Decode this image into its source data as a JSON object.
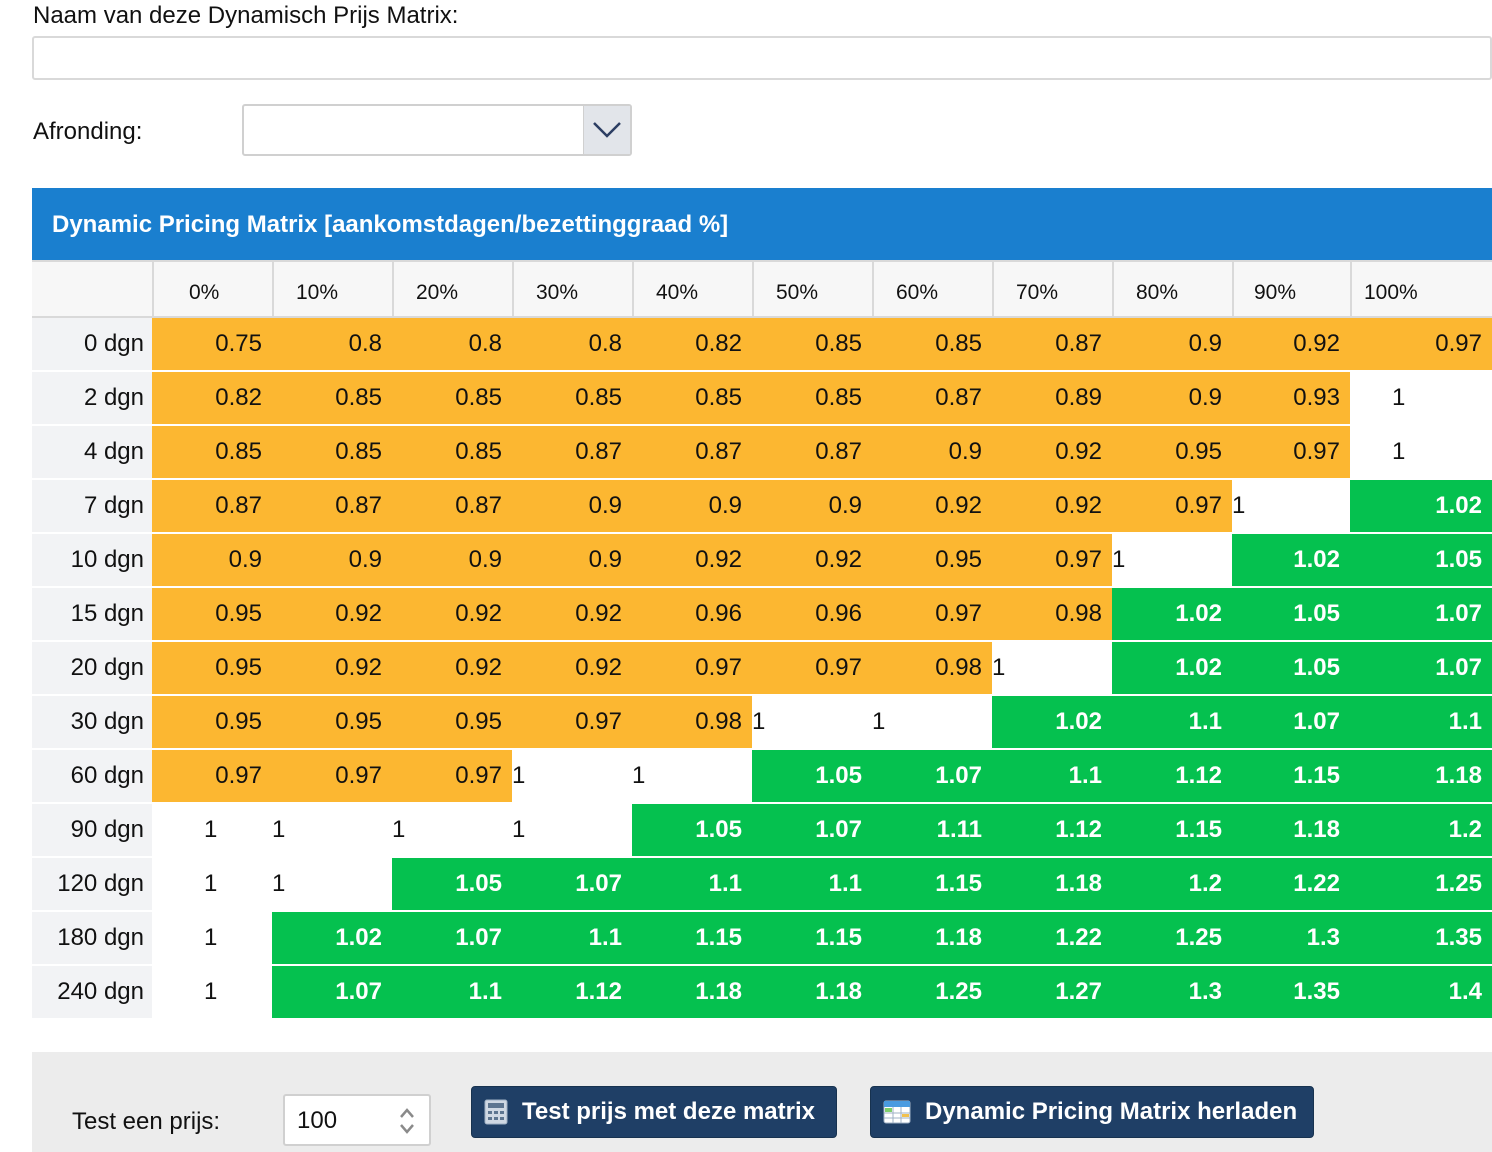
{
  "form": {
    "name_label": "Naam van deze Dynamisch Prijs Matrix:",
    "name_value": "",
    "rounding_label": "Afronding:",
    "rounding_value": ""
  },
  "matrix": {
    "title": "Dynamic Pricing Matrix [aankomstdagen/bezettinggraad %]",
    "columns": [
      "0%",
      "10%",
      "20%",
      "30%",
      "40%",
      "50%",
      "60%",
      "70%",
      "80%",
      "90%",
      "100%"
    ],
    "rows": [
      {
        "label": "0 dgn",
        "values": [
          "0.75",
          "0.8",
          "0.8",
          "0.8",
          "0.82",
          "0.85",
          "0.85",
          "0.87",
          "0.9",
          "0.92",
          "0.97"
        ]
      },
      {
        "label": "2 dgn",
        "values": [
          "0.82",
          "0.85",
          "0.85",
          "0.85",
          "0.85",
          "0.85",
          "0.87",
          "0.89",
          "0.9",
          "0.93",
          "1"
        ]
      },
      {
        "label": "4 dgn",
        "values": [
          "0.85",
          "0.85",
          "0.85",
          "0.87",
          "0.87",
          "0.87",
          "0.9",
          "0.92",
          "0.95",
          "0.97",
          "1"
        ]
      },
      {
        "label": "7 dgn",
        "values": [
          "0.87",
          "0.87",
          "0.87",
          "0.9",
          "0.9",
          "0.9",
          "0.92",
          "0.92",
          "0.97",
          "1",
          "1.02"
        ]
      },
      {
        "label": "10 dgn",
        "values": [
          "0.9",
          "0.9",
          "0.9",
          "0.9",
          "0.92",
          "0.92",
          "0.95",
          "0.97",
          "1",
          "1.02",
          "1.05"
        ]
      },
      {
        "label": "15 dgn",
        "values": [
          "0.95",
          "0.92",
          "0.92",
          "0.92",
          "0.96",
          "0.96",
          "0.97",
          "0.98",
          "1.02",
          "1.05",
          "1.07"
        ]
      },
      {
        "label": "20 dgn",
        "values": [
          "0.95",
          "0.92",
          "0.92",
          "0.92",
          "0.97",
          "0.97",
          "0.98",
          "1",
          "1.02",
          "1.05",
          "1.07"
        ]
      },
      {
        "label": "30 dgn",
        "values": [
          "0.95",
          "0.95",
          "0.95",
          "0.97",
          "0.98",
          "1",
          "1",
          "1.02",
          "1.1",
          "1.07",
          "1.1"
        ]
      },
      {
        "label": "60 dgn",
        "values": [
          "0.97",
          "0.97",
          "0.97",
          "1",
          "1",
          "1.05",
          "1.07",
          "1.1",
          "1.12",
          "1.15",
          "1.18"
        ]
      },
      {
        "label": "90 dgn",
        "values": [
          "1",
          "1",
          "1",
          "1",
          "1.05",
          "1.07",
          "1.11",
          "1.12",
          "1.15",
          "1.18",
          "1.2"
        ]
      },
      {
        "label": "120 dgn",
        "values": [
          "1",
          "1",
          "1.05",
          "1.07",
          "1.1",
          "1.1",
          "1.15",
          "1.18",
          "1.2",
          "1.22",
          "1.25"
        ]
      },
      {
        "label": "180 dgn",
        "values": [
          "1",
          "1.02",
          "1.07",
          "1.1",
          "1.15",
          "1.15",
          "1.18",
          "1.22",
          "1.25",
          "1.3",
          "1.35"
        ]
      },
      {
        "label": "240 dgn",
        "values": [
          "1",
          "1.07",
          "1.1",
          "1.12",
          "1.18",
          "1.18",
          "1.25",
          "1.27",
          "1.3",
          "1.35",
          "1.4"
        ]
      }
    ]
  },
  "colors": {
    "header_blue": "#1a7fcf",
    "below_one": "#fcb731",
    "above_one": "#05c14f",
    "equal_one": "#ffffff",
    "button_navy": "#1f3f66"
  },
  "test": {
    "label": "Test een prijs:",
    "price_value": "100",
    "test_button_label": "Test prijs met deze matrix",
    "reload_button_label": "Dynamic Pricing Matrix herladen",
    "test_button_icon": "calculator-icon",
    "reload_button_icon": "table-grid-icon"
  }
}
